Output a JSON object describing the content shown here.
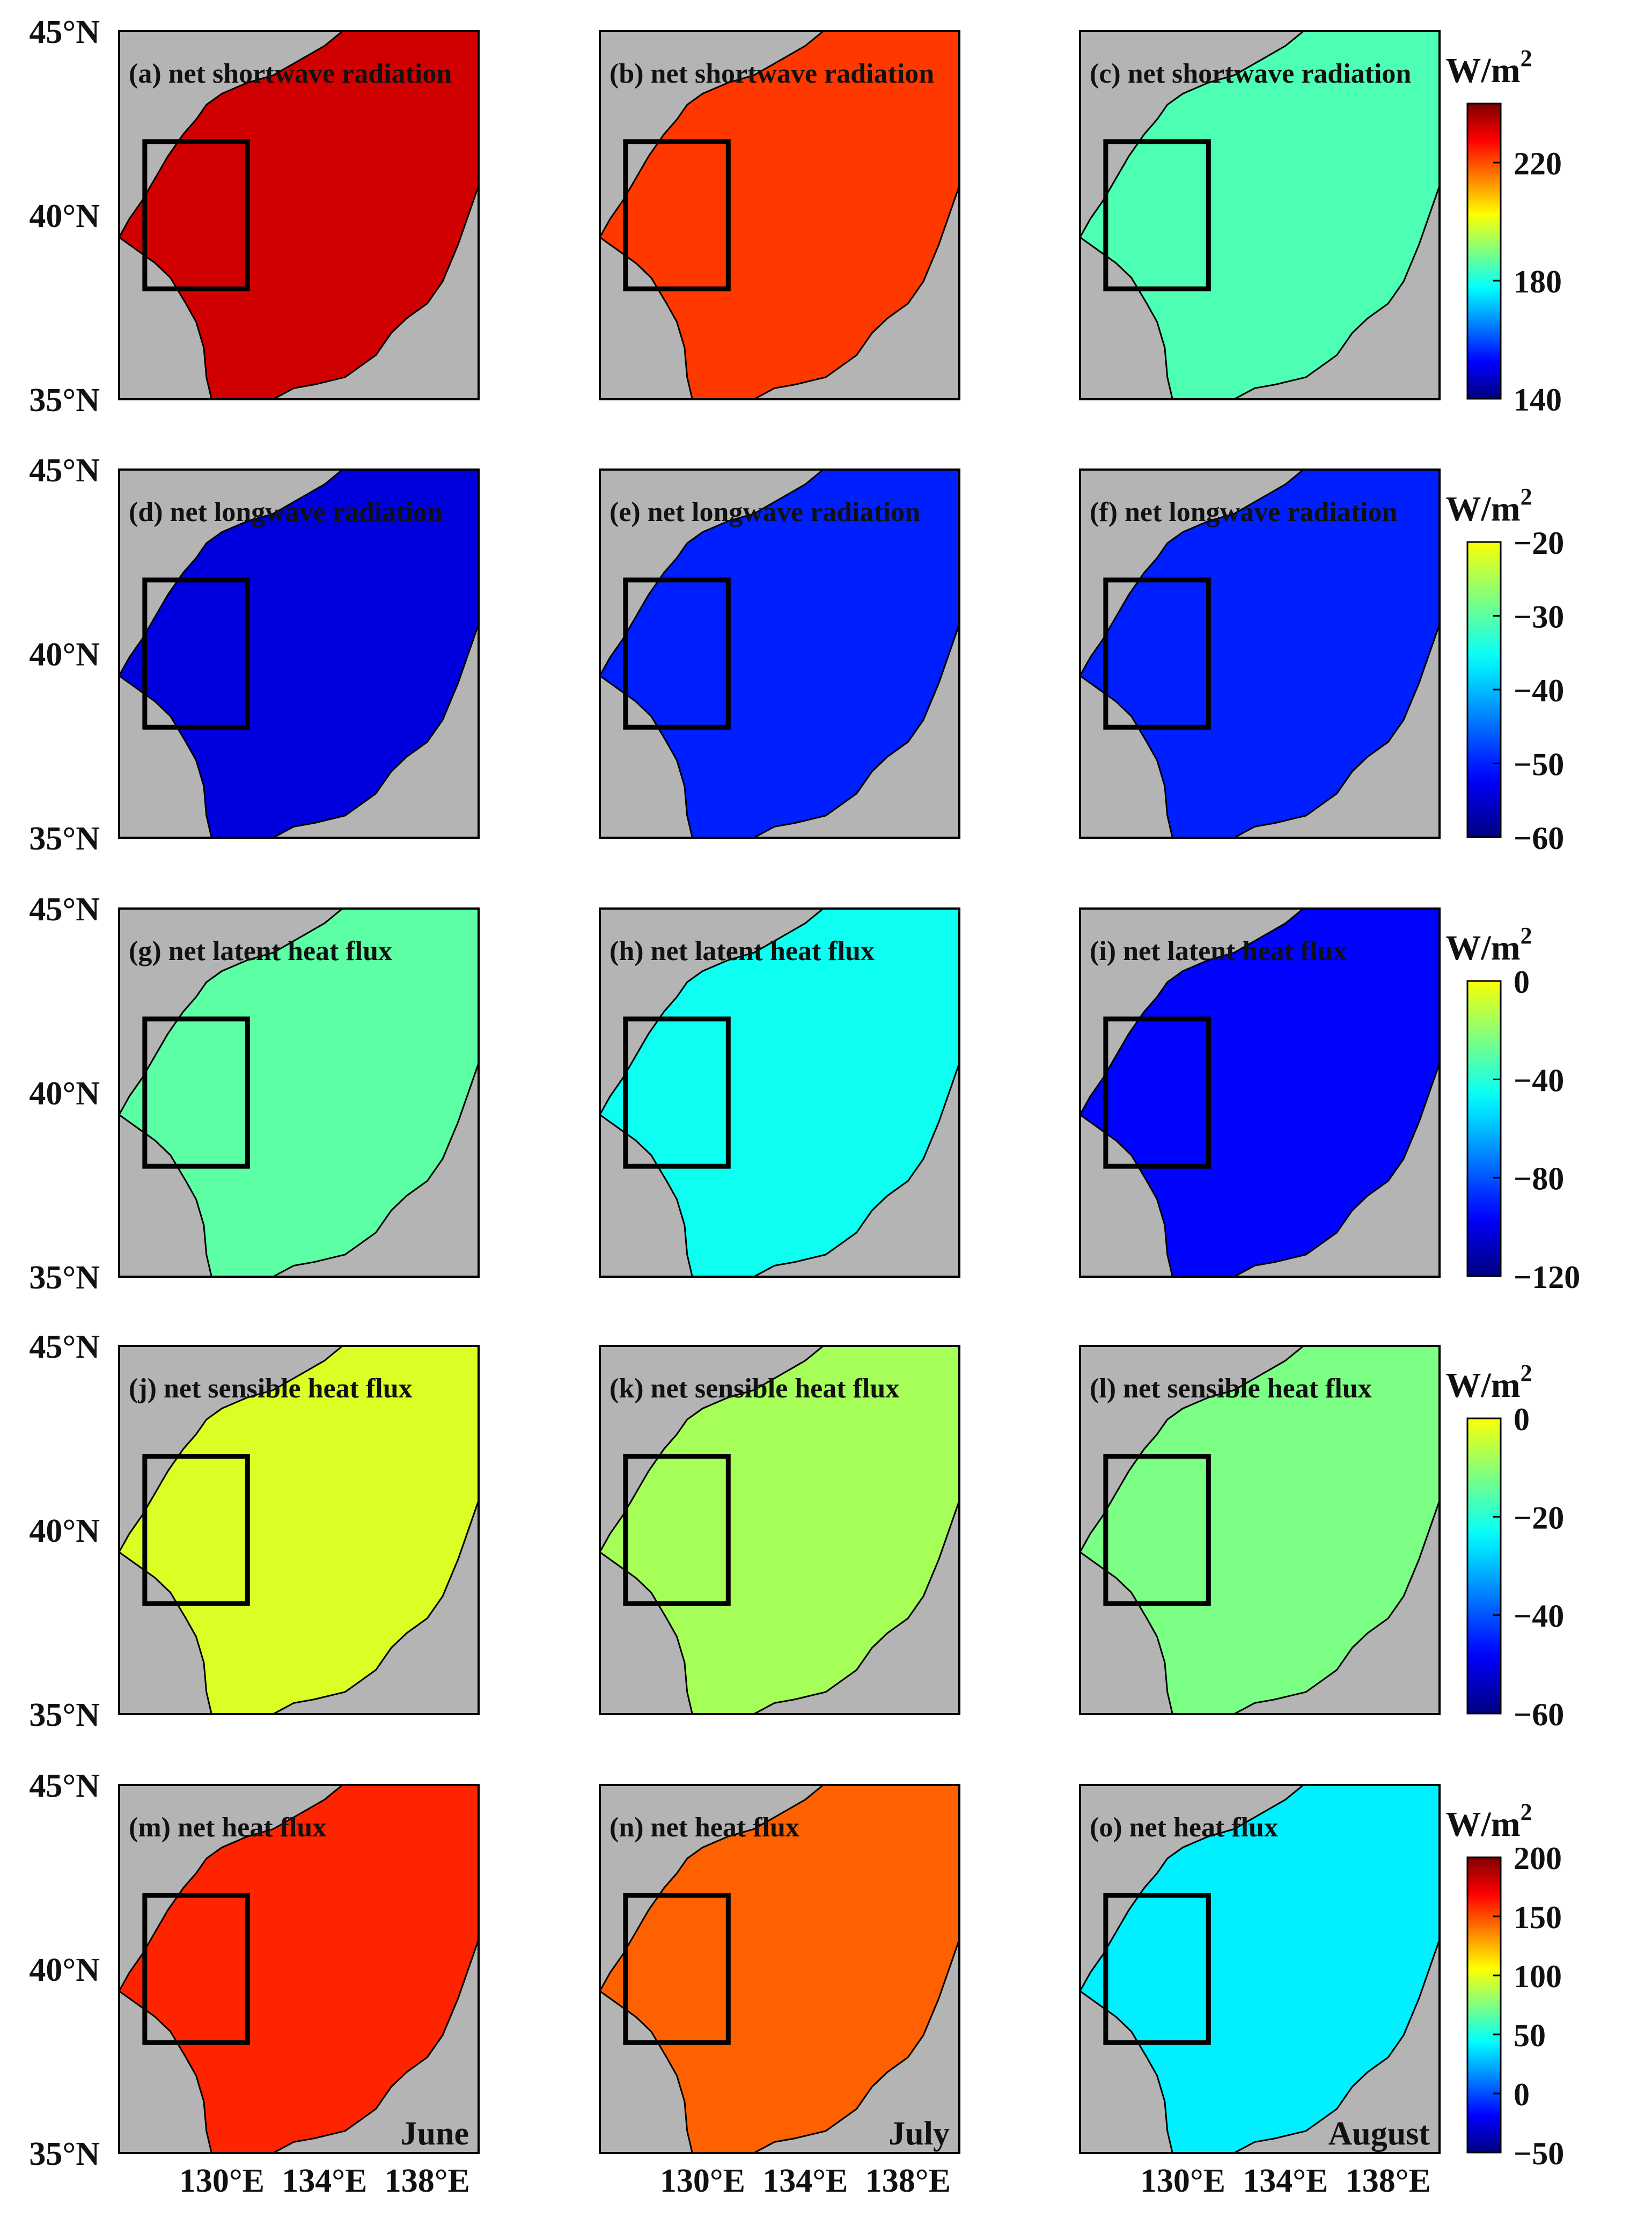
{
  "chart_data": {
    "type": "heatmap",
    "description_axes": {
      "y_ticks": [
        "45°N",
        "40°N",
        "35°N"
      ],
      "x_ticks": [
        "130°E",
        "134°E",
        "138°E"
      ],
      "y_range": [
        35,
        45
      ],
      "x_range": [
        126,
        140
      ]
    },
    "columns": [
      "June",
      "July",
      "August"
    ],
    "rows": [
      {
        "variable": "net shortwave radiation",
        "panels": [
          {
            "label": "(a) net shortwave radiation",
            "month": "June",
            "mean_value": 232
          },
          {
            "label": "(b) net shortwave radiation",
            "month": "July",
            "mean_value": 222
          },
          {
            "label": "(c) net shortwave radiation",
            "month": "August",
            "mean_value": 185
          }
        ],
        "colorbar": {
          "unit": "W/m2",
          "range": [
            140,
            240
          ],
          "ticks": [
            140,
            180,
            220
          ],
          "tick_labels": [
            "140",
            "180",
            "220"
          ]
        }
      },
      {
        "variable": "net longwave radiation",
        "panels": [
          {
            "label": "(d) net longwave radiation",
            "month": "June",
            "mean_value": -54
          },
          {
            "label": "(e) net longwave radiation",
            "month": "July",
            "mean_value": -50
          },
          {
            "label": "(f) net longwave radiation",
            "month": "August",
            "mean_value": -50
          }
        ],
        "colorbar": {
          "unit": "W/m2",
          "range": [
            -60,
            -20
          ],
          "ticks": [
            -20,
            -30,
            -40,
            -50,
            -60
          ],
          "tick_labels": [
            "−20",
            "−30",
            "−40",
            "−50",
            "−60"
          ]
        }
      },
      {
        "variable": "net latent heat flux",
        "panels": [
          {
            "label": "(g) net latent heat flux",
            "month": "June",
            "mean_value": -30
          },
          {
            "label": "(h) net latent heat flux",
            "month": "July",
            "mean_value": -45
          },
          {
            "label": "(i) net latent heat flux",
            "month": "August",
            "mean_value": -95
          }
        ],
        "colorbar": {
          "unit": "W/m2",
          "range": [
            -120,
            0
          ],
          "ticks": [
            0,
            -40,
            -80,
            -120
          ],
          "tick_labels": [
            "0",
            "−40",
            "−80",
            "−120"
          ]
        }
      },
      {
        "variable": "net sensible heat flux",
        "panels": [
          {
            "label": "(j) net sensible heat flux",
            "month": "June",
            "mean_value": -3
          },
          {
            "label": "(k) net sensible heat flux",
            "month": "July",
            "mean_value": -8
          },
          {
            "label": "(l) net sensible heat flux",
            "month": "August",
            "mean_value": -12
          }
        ],
        "colorbar": {
          "unit": "W/m2",
          "range": [
            -60,
            0
          ],
          "ticks": [
            0,
            -20,
            -40,
            -60
          ],
          "tick_labels": [
            "0",
            "−20",
            "−40",
            "−60"
          ]
        }
      },
      {
        "variable": "net heat flux",
        "panels": [
          {
            "label": "(m) net heat flux",
            "month": "June",
            "mean_value": 160
          },
          {
            "label": "(n) net heat flux",
            "month": "July",
            "mean_value": 145
          },
          {
            "label": "(o) net heat flux",
            "month": "August",
            "mean_value": 40
          }
        ],
        "colorbar": {
          "unit": "W/m2",
          "range": [
            -50,
            200
          ],
          "ticks": [
            200,
            150,
            100,
            50,
            0,
            -50
          ],
          "tick_labels": [
            "200",
            "150",
            "100",
            "50",
            "0",
            "−50"
          ]
        }
      }
    ],
    "box_region": {
      "lon": [
        127,
        131
      ],
      "lat": [
        38,
        42
      ]
    },
    "month_labels": [
      "June",
      "July",
      "August"
    ],
    "colors": {
      "land": "#b4b4b4",
      "frame": "#000000"
    }
  }
}
